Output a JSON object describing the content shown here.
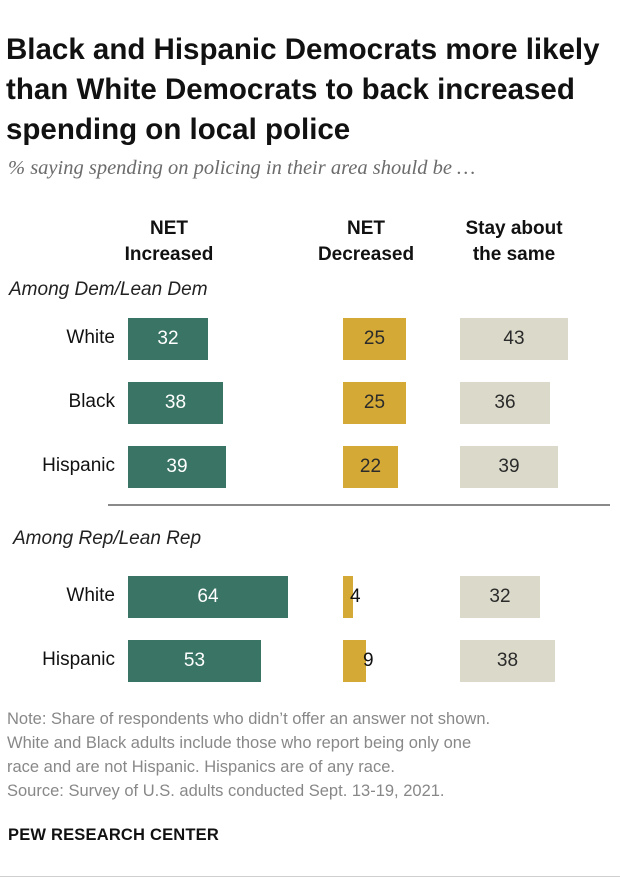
{
  "header": {
    "title": "Black and Hispanic Democrats more likely than White Democrats to back increased spending on local police",
    "subtitle": "% saying spending on policing in their area should be …"
  },
  "columns": {
    "increased_line1": "NET",
    "increased_line2": "Increased",
    "decreased_line1": "NET",
    "decreased_line2": "Decreased",
    "same_line1": "Stay about",
    "same_line2": "the same"
  },
  "colors": {
    "increased": "#3a7464",
    "decreased": "#d4a935",
    "same": "#dbd9c9"
  },
  "chart_data": {
    "type": "bar",
    "title": "Black and Hispanic Democrats more likely than White Democrats to back increased spending on local police",
    "subtitle": "% saying spending on policing in their area should be …",
    "series": [
      {
        "name": "NET Increased"
      },
      {
        "name": "NET Decreased"
      },
      {
        "name": "Stay about the same"
      }
    ],
    "groups": [
      {
        "name": "Among Dem/Lean Dem",
        "rows": [
          {
            "label": "White",
            "increased": 32,
            "decreased": 25,
            "same": 43
          },
          {
            "label": "Black",
            "increased": 38,
            "decreased": 25,
            "same": 36
          },
          {
            "label": "Hispanic",
            "increased": 39,
            "decreased": 22,
            "same": 39
          }
        ]
      },
      {
        "name": "Among Rep/Lean Rep",
        "rows": [
          {
            "label": "White",
            "increased": 64,
            "decreased": 4,
            "same": 32
          },
          {
            "label": "Hispanic",
            "increased": 53,
            "decreased": 9,
            "same": 38
          }
        ]
      }
    ]
  },
  "footer": {
    "note_line1": "Note: Share of respondents who didn’t offer an answer not shown.",
    "note_line2": "White and Black adults include those who report being only one",
    "note_line3": "race and are not Hispanic. Hispanics are of any race.",
    "source": "Source: Survey of U.S. adults conducted Sept. 13-19, 2021.",
    "brand": "PEW RESEARCH CENTER"
  }
}
